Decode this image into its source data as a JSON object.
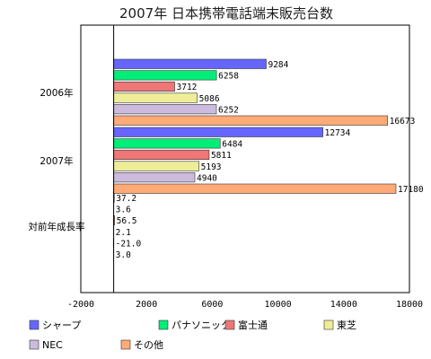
{
  "chart_data": {
    "type": "bar",
    "orientation": "horizontal",
    "title": "2007年 日本携帯電話端末販売台数",
    "categories": [
      "2006年",
      "2007年",
      "対前年成長率"
    ],
    "xlim": [
      -2000,
      18000
    ],
    "x_ticks": [
      -2000,
      2000,
      6000,
      10000,
      14000,
      18000
    ],
    "grid": false,
    "legend_position": "bottom",
    "series": [
      {
        "name": "シャープ",
        "color": "#6666ff",
        "values": [
          9284,
          12734,
          37.2
        ],
        "labels": [
          "9284",
          "12734",
          "37.2"
        ]
      },
      {
        "name": "パナソニック",
        "color": "#00ee77",
        "values": [
          6258,
          6484,
          3.6
        ],
        "labels": [
          "6258",
          "6484",
          "3.6"
        ]
      },
      {
        "name": "富士通",
        "color": "#ee7777",
        "values": [
          3712,
          5811,
          56.5
        ],
        "labels": [
          "3712",
          "5811",
          "56.5"
        ]
      },
      {
        "name": "東芝",
        "color": "#eeee99",
        "values": [
          5086,
          5193,
          2.1
        ],
        "labels": [
          "5086",
          "5193",
          "2.1"
        ]
      },
      {
        "name": "NEC",
        "color": "#ccbbdd",
        "values": [
          6252,
          4940,
          -21.0
        ],
        "labels": [
          "6252",
          "4940",
          "-21.0"
        ]
      },
      {
        "name": "その他",
        "color": "#ffaa77",
        "values": [
          16673,
          17180,
          3.0
        ],
        "labels": [
          "16673",
          "17180",
          "3.0"
        ]
      }
    ]
  }
}
